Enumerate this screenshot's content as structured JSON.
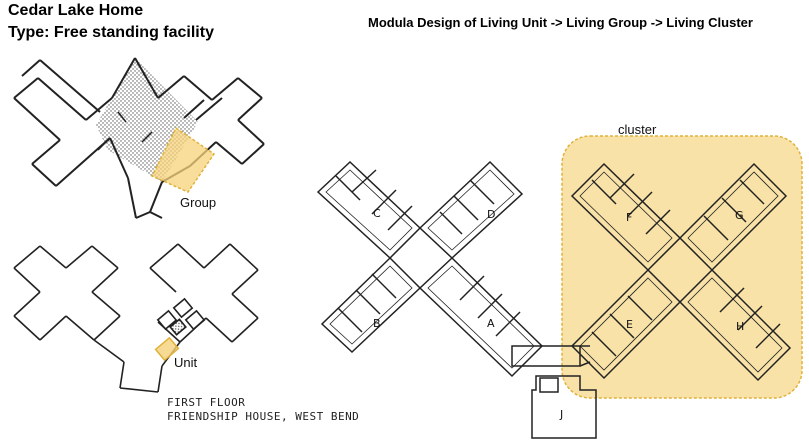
{
  "title": {
    "line1": "Cedar Lake Home",
    "line2": "Type: Free standing facility"
  },
  "heading": "Modula Design of Living Unit -> Living Group -> Living Cluster",
  "labels": {
    "group": "Group",
    "unit": "Unit",
    "cluster": "cluster"
  },
  "wings": [
    "C",
    "D",
    "B",
    "A",
    "F",
    "G",
    "E",
    "H",
    "J"
  ],
  "caption": {
    "line1": "FIRST FLOOR",
    "line2": "FRIENDSHIP HOUSE,  WEST BEND"
  },
  "colors": {
    "highlight": "#f5d27a",
    "highlight_border": "#e0b23a",
    "line": "#222222"
  }
}
